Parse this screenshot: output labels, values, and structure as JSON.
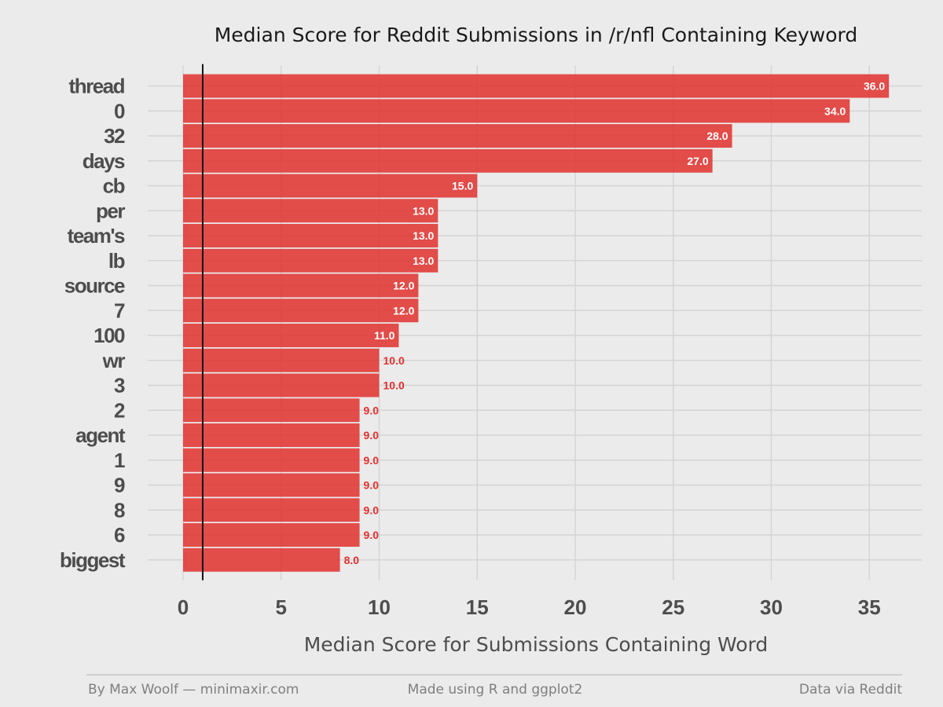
{
  "chart_data": {
    "type": "bar",
    "orientation": "horizontal",
    "title": "Median Score for Reddit Submissions in /r/nfl Containing Keyword",
    "xlabel": "Median Score for Submissions Containing Word",
    "ylabel": "",
    "xlim": [
      0,
      36.5
    ],
    "xticks": [
      0,
      5,
      10,
      15,
      20,
      25,
      30,
      35
    ],
    "reference_line": 1,
    "grid": true,
    "bar_color": "#e0302d",
    "categories": [
      "thread",
      "0",
      "32",
      "days",
      "cb",
      "per",
      "team's",
      "lb",
      "source",
      "7",
      "100",
      "wr",
      "3",
      "2",
      "agent",
      "1",
      "9",
      "8",
      "6",
      "biggest"
    ],
    "values": [
      36,
      34,
      28,
      27,
      15,
      13,
      13,
      13,
      12,
      12,
      11,
      10,
      10,
      9,
      9,
      9,
      9,
      9,
      9,
      8
    ],
    "value_labels": [
      "36.0",
      "34.0",
      "28.0",
      "27.0",
      "15.0",
      "13.0",
      "13.0",
      "13.0",
      "12.0",
      "12.0",
      "11.0",
      "10.0",
      "10.0",
      "9.0",
      "9.0",
      "9.0",
      "9.0",
      "9.0",
      "9.0",
      "8.0"
    ]
  },
  "footer": {
    "left": "By Max Woolf — minimaxir.com",
    "center": "Made using R and ggplot2",
    "right": "Data via Reddit"
  }
}
